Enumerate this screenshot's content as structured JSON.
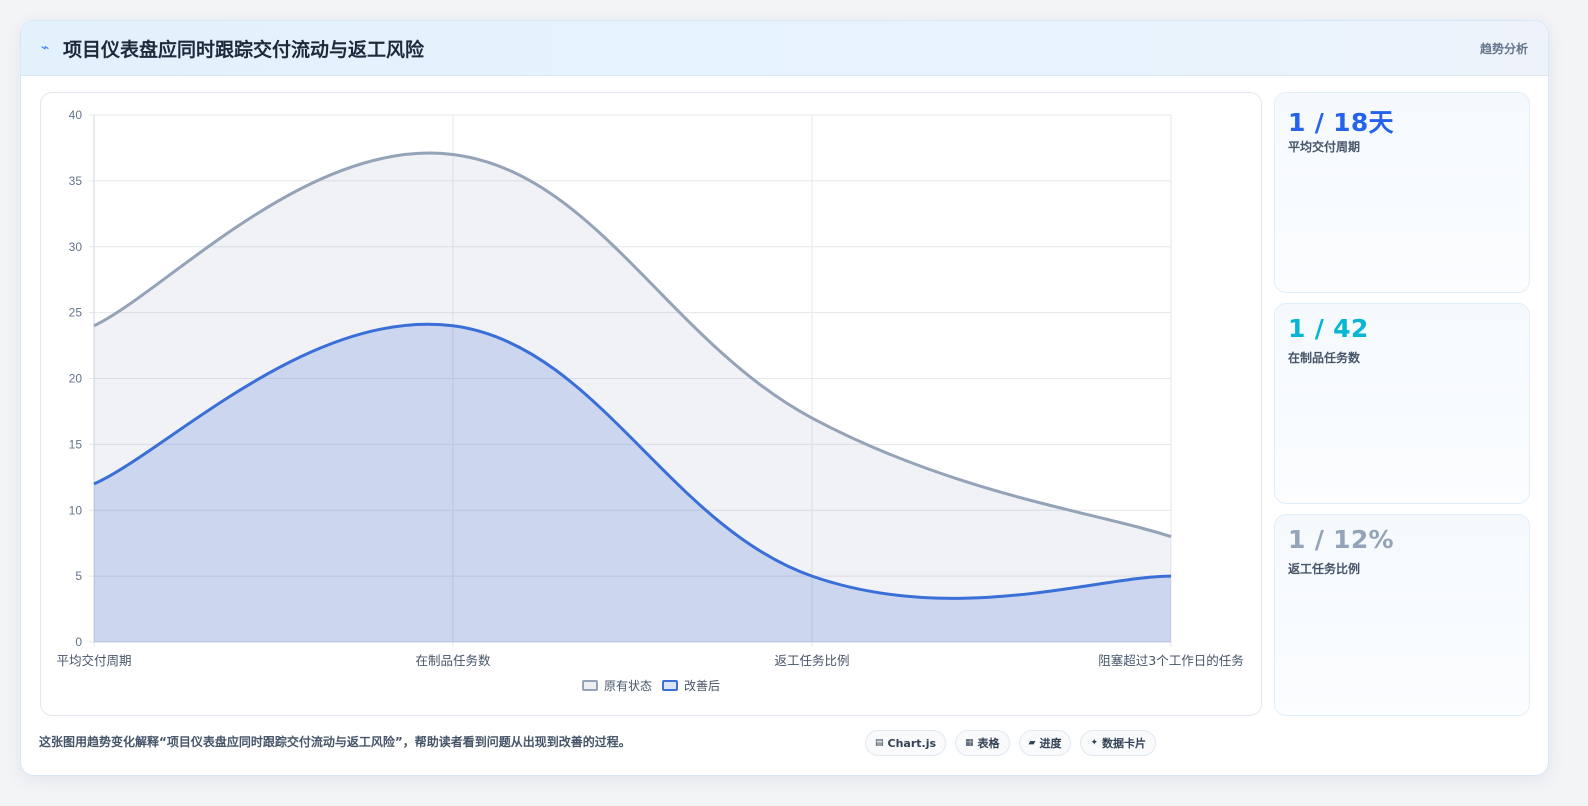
{
  "header": {
    "icon": "lightning-icon",
    "title": "项目仪表盘应同时跟踪交付流动与返工风险",
    "tag": "趋势分析"
  },
  "stats": [
    {
      "value": "1 / 18天",
      "label": "平均交付周期",
      "color": "#2563eb"
    },
    {
      "value": "1 / 42",
      "label": "在制品任务数",
      "color": "#06b6d4"
    },
    {
      "value": "1 / 12%",
      "label": "返工任务比例",
      "color": "#94a3b8"
    }
  ],
  "caption": "这张图用趋势变化解释“项目仪表盘应同时跟踪交付流动与返工风险”，帮助读者看到问题从出现到改善的过程。",
  "chips": [
    {
      "icon": "▤",
      "label": "Chart.js"
    },
    {
      "icon": "▦",
      "label": "表格"
    },
    {
      "icon": "▰",
      "label": "进度"
    },
    {
      "icon": "✦",
      "label": "数据卡片"
    }
  ],
  "chart_data": {
    "type": "area",
    "categories": [
      "平均交付周期",
      "在制品任务数",
      "返工任务比例",
      "阻塞超过3个工作日的任务"
    ],
    "series": [
      {
        "name": "原有状态",
        "values": [
          24,
          37,
          17,
          8
        ],
        "color": "#94a3b8"
      },
      {
        "name": "改善后",
        "values": [
          12,
          24,
          5,
          5
        ],
        "color": "#3b6fd8"
      }
    ],
    "ylim": [
      0,
      40
    ],
    "yticks": [
      0,
      5,
      10,
      15,
      20,
      25,
      30,
      35,
      40
    ],
    "grid": true,
    "legend": "bottom"
  }
}
